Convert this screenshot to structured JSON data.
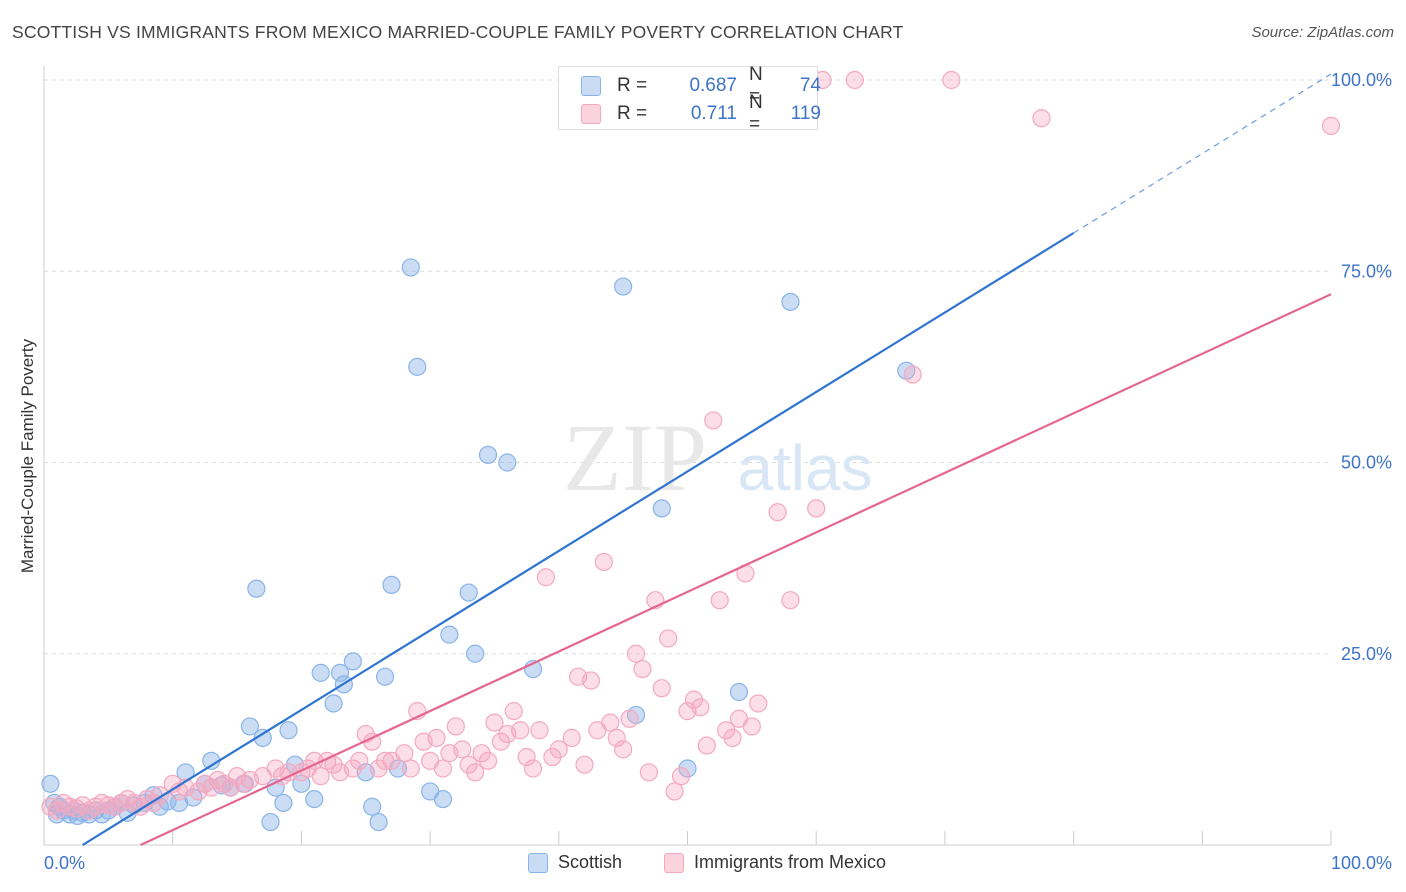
{
  "header": {
    "title": "SCOTTISH VS IMMIGRANTS FROM MEXICO MARRIED-COUPLE FAMILY POVERTY CORRELATION CHART",
    "source": "Source: ZipAtlas.com"
  },
  "watermark": {
    "zip": "ZIP",
    "atlas": "atlas"
  },
  "legend_top": {
    "rows": [
      {
        "series": "Scottish",
        "r_label": "R =",
        "r_value": "0.687",
        "n_label": "N =",
        "n_value": "74",
        "color": "#8ab4e8"
      },
      {
        "series": "Immigrants from Mexico",
        "r_label": "R =",
        "r_value": "0.711",
        "n_label": "N =",
        "n_value": "119",
        "color": "#f4a9c0"
      }
    ]
  },
  "chart_data": {
    "type": "scatter",
    "title": "SCOTTISH VS IMMIGRANTS FROM MEXICO MARRIED-COUPLE FAMILY POVERTY CORRELATION CHART",
    "xlabel": "",
    "ylabel": "Married-Couple Family Poverty",
    "xlim": [
      0,
      100
    ],
    "ylim": [
      0,
      100
    ],
    "x_tick_labels": [
      {
        "value": 0,
        "label": "0.0%"
      },
      {
        "value": 100,
        "label": "100.0%"
      }
    ],
    "y_tick_labels": [
      {
        "value": 25,
        "label": "25.0%"
      },
      {
        "value": 50,
        "label": "50.0%"
      },
      {
        "value": 75,
        "label": "75.0%"
      },
      {
        "value": 100,
        "label": "100.0%"
      }
    ],
    "grid": true,
    "legend_position": "top-center",
    "series": [
      {
        "name": "Scottish",
        "color": "#8ab4e8",
        "line_color": "#2e74d0",
        "trend": {
          "x0": 3,
          "y0": 0,
          "x1": 80,
          "y1": 80,
          "dashed_to_x": 100
        },
        "points": [
          [
            0.5,
            8
          ],
          [
            0.8,
            5.5
          ],
          [
            1,
            4
          ],
          [
            1.2,
            5
          ],
          [
            1.5,
            4.5
          ],
          [
            2,
            4
          ],
          [
            2.3,
            4.5
          ],
          [
            2.6,
            3.8
          ],
          [
            3,
            4.2
          ],
          [
            3.5,
            4
          ],
          [
            4,
            4.5
          ],
          [
            4.5,
            4
          ],
          [
            5,
            4.5
          ],
          [
            5.5,
            5
          ],
          [
            6,
            5.5
          ],
          [
            6.5,
            4.2
          ],
          [
            7,
            5.2
          ],
          [
            7.8,
            5.5
          ],
          [
            8.5,
            6.5
          ],
          [
            9,
            5
          ],
          [
            9.6,
            5.7
          ],
          [
            10.5,
            5.5
          ],
          [
            11,
            9.5
          ],
          [
            11.6,
            6.2
          ],
          [
            12.5,
            8
          ],
          [
            13,
            11
          ],
          [
            13.8,
            7.8
          ],
          [
            14.5,
            7.5
          ],
          [
            15.6,
            8
          ],
          [
            16,
            15.5
          ],
          [
            16.5,
            33.5
          ],
          [
            17,
            14
          ],
          [
            17.6,
            3
          ],
          [
            18,
            7.5
          ],
          [
            18.6,
            5.5
          ],
          [
            19,
            15
          ],
          [
            19.5,
            10.5
          ],
          [
            20,
            8
          ],
          [
            21,
            6
          ],
          [
            21.5,
            22.5
          ],
          [
            22.5,
            18.5
          ],
          [
            23,
            22.5
          ],
          [
            23.3,
            21
          ],
          [
            24,
            24
          ],
          [
            25,
            9.5
          ],
          [
            25.5,
            5
          ],
          [
            26,
            3
          ],
          [
            26.5,
            22
          ],
          [
            27,
            34
          ],
          [
            27.5,
            10
          ],
          [
            28.5,
            75.5
          ],
          [
            29,
            62.5
          ],
          [
            30,
            7
          ],
          [
            31,
            6
          ],
          [
            31.5,
            27.5
          ],
          [
            33,
            33
          ],
          [
            33.5,
            25
          ],
          [
            34.5,
            51
          ],
          [
            36,
            50
          ],
          [
            38,
            23
          ],
          [
            45,
            73
          ],
          [
            46,
            17
          ],
          [
            48,
            44
          ],
          [
            50,
            10
          ],
          [
            54,
            20
          ],
          [
            58,
            71
          ],
          [
            67,
            62
          ]
        ]
      },
      {
        "name": "Immigrants from Mexico",
        "color": "#f4a9c0",
        "line_color": "#e56690",
        "trend": {
          "x0": 7.5,
          "y0": 0,
          "x1": 100,
          "y1": 72,
          "dashed_to_x": 100
        },
        "points": [
          [
            0.5,
            5
          ],
          [
            1,
            4.5
          ],
          [
            1.5,
            5.5
          ],
          [
            2,
            5
          ],
          [
            2.5,
            4.8
          ],
          [
            3,
            5.2
          ],
          [
            3.5,
            4.5
          ],
          [
            4,
            5
          ],
          [
            4.5,
            5.5
          ],
          [
            5,
            5.2
          ],
          [
            5.5,
            5
          ],
          [
            6,
            5.5
          ],
          [
            6.5,
            6
          ],
          [
            7,
            5.5
          ],
          [
            7.5,
            5
          ],
          [
            8,
            6
          ],
          [
            8.5,
            5.5
          ],
          [
            9,
            6.5
          ],
          [
            10,
            8
          ],
          [
            10.5,
            7
          ],
          [
            11,
            7.5
          ],
          [
            12,
            7
          ],
          [
            12.5,
            8
          ],
          [
            13,
            7.5
          ],
          [
            13.5,
            8.5
          ],
          [
            14,
            8
          ],
          [
            14.5,
            7.5
          ],
          [
            15,
            9
          ],
          [
            15.5,
            8
          ],
          [
            16,
            8.5
          ],
          [
            17,
            9
          ],
          [
            18,
            10
          ],
          [
            18.5,
            9
          ],
          [
            19,
            9.5
          ],
          [
            20,
            9.5
          ],
          [
            20.5,
            10
          ],
          [
            21,
            11
          ],
          [
            21.5,
            9
          ],
          [
            22,
            11
          ],
          [
            22.5,
            10.5
          ],
          [
            23,
            9.5
          ],
          [
            24,
            10
          ],
          [
            24.5,
            11
          ],
          [
            25,
            14.5
          ],
          [
            25.5,
            13.5
          ],
          [
            26,
            10
          ],
          [
            26.5,
            11
          ],
          [
            27,
            11
          ],
          [
            28,
            12
          ],
          [
            28.5,
            10
          ],
          [
            29,
            17.5
          ],
          [
            29.5,
            13.5
          ],
          [
            30,
            11
          ],
          [
            30.5,
            14
          ],
          [
            31,
            10
          ],
          [
            31.5,
            12
          ],
          [
            32,
            15.5
          ],
          [
            32.5,
            12.5
          ],
          [
            33,
            10.5
          ],
          [
            33.5,
            9.5
          ],
          [
            34,
            12
          ],
          [
            34.5,
            11
          ],
          [
            35,
            16
          ],
          [
            35.5,
            13.5
          ],
          [
            36,
            14.5
          ],
          [
            36.5,
            17.5
          ],
          [
            37,
            15
          ],
          [
            37.5,
            11.5
          ],
          [
            38,
            10
          ],
          [
            38.5,
            15
          ],
          [
            39,
            35
          ],
          [
            39.5,
            11.5
          ],
          [
            40,
            12.5
          ],
          [
            41,
            14
          ],
          [
            41.5,
            22
          ],
          [
            42,
            10.5
          ],
          [
            42.5,
            21.5
          ],
          [
            43,
            15
          ],
          [
            43.5,
            37
          ],
          [
            44,
            16
          ],
          [
            44.5,
            14
          ],
          [
            45,
            12.5
          ],
          [
            45.5,
            16.5
          ],
          [
            46,
            25
          ],
          [
            46.5,
            23
          ],
          [
            47,
            9.5
          ],
          [
            47.5,
            32
          ],
          [
            48,
            20.5
          ],
          [
            48.5,
            27
          ],
          [
            49,
            7
          ],
          [
            49.5,
            9
          ],
          [
            50,
            17.5
          ],
          [
            50.5,
            19
          ],
          [
            51,
            18
          ],
          [
            51.5,
            13
          ],
          [
            52,
            55.5
          ],
          [
            52.5,
            32
          ],
          [
            53,
            15
          ],
          [
            53.5,
            14
          ],
          [
            54,
            16.5
          ],
          [
            54.5,
            35.5
          ],
          [
            55,
            15.5
          ],
          [
            55.5,
            18.5
          ],
          [
            57,
            43.5
          ],
          [
            58,
            32
          ],
          [
            60,
            44
          ],
          [
            60.5,
            100
          ],
          [
            63,
            100
          ],
          [
            67.5,
            61.5
          ],
          [
            70.5,
            100
          ],
          [
            77.5,
            95
          ],
          [
            100,
            94
          ]
        ]
      }
    ]
  },
  "legend_bottom": {
    "items": [
      {
        "label": "Scottish",
        "color": "#8ab4e8"
      },
      {
        "label": "Immigrants from Mexico",
        "color": "#f4a9c0"
      }
    ]
  }
}
